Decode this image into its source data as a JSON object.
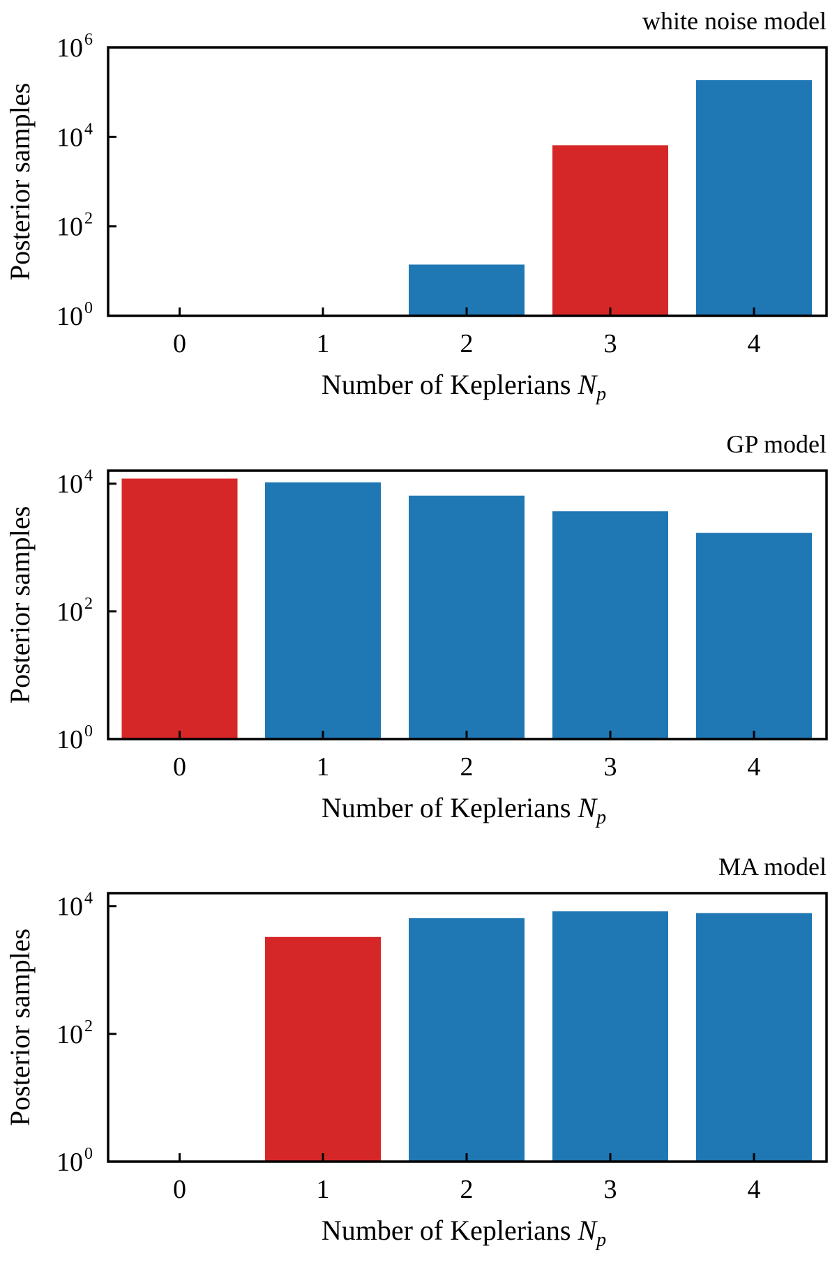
{
  "colors": {
    "highlight": "#d62728",
    "default": "#1f77b4"
  },
  "chart_data": [
    {
      "type": "bar",
      "title": "white noise model",
      "xlabel": "Number of Keplerians",
      "xlabel_symbol": "N",
      "xlabel_subscript": "p",
      "ylabel": "Posterior samples",
      "yscale": "log",
      "ylim": [
        1,
        1000000
      ],
      "yticks": [
        {
          "exponent": 0,
          "base": "10",
          "sup": "0"
        },
        {
          "exponent": 2,
          "base": "10",
          "sup": "2"
        },
        {
          "exponent": 4,
          "base": "10",
          "sup": "4"
        },
        {
          "exponent": 6,
          "base": "10",
          "sup": "6"
        }
      ],
      "categories": [
        "0",
        "1",
        "2",
        "3",
        "4"
      ],
      "values": [
        0,
        0,
        14,
        6500,
        185000
      ],
      "highlight_index": 3
    },
    {
      "type": "bar",
      "title": "GP model",
      "xlabel": "Number of Keplerians",
      "xlabel_symbol": "N",
      "xlabel_subscript": "p",
      "ylabel": "Posterior samples",
      "yscale": "log",
      "ylim": [
        1,
        16000
      ],
      "yticks": [
        {
          "exponent": 0,
          "base": "10",
          "sup": "0"
        },
        {
          "exponent": 2,
          "base": "10",
          "sup": "2"
        },
        {
          "exponent": 4,
          "base": "10",
          "sup": "4"
        }
      ],
      "categories": [
        "0",
        "1",
        "2",
        "3",
        "4"
      ],
      "values": [
        12000,
        10500,
        6500,
        3700,
        1700
      ],
      "highlight_index": 0
    },
    {
      "type": "bar",
      "title": "MA model",
      "xlabel": "Number of Keplerians",
      "xlabel_symbol": "N",
      "xlabel_subscript": "p",
      "ylabel": "Posterior samples",
      "yscale": "log",
      "ylim": [
        1,
        16000
      ],
      "yticks": [
        {
          "exponent": 0,
          "base": "10",
          "sup": "0"
        },
        {
          "exponent": 2,
          "base": "10",
          "sup": "2"
        },
        {
          "exponent": 4,
          "base": "10",
          "sup": "4"
        }
      ],
      "categories": [
        "0",
        "1",
        "2",
        "3",
        "4"
      ],
      "values": [
        0,
        3300,
        6500,
        8300,
        7800
      ],
      "highlight_index": 1
    }
  ]
}
